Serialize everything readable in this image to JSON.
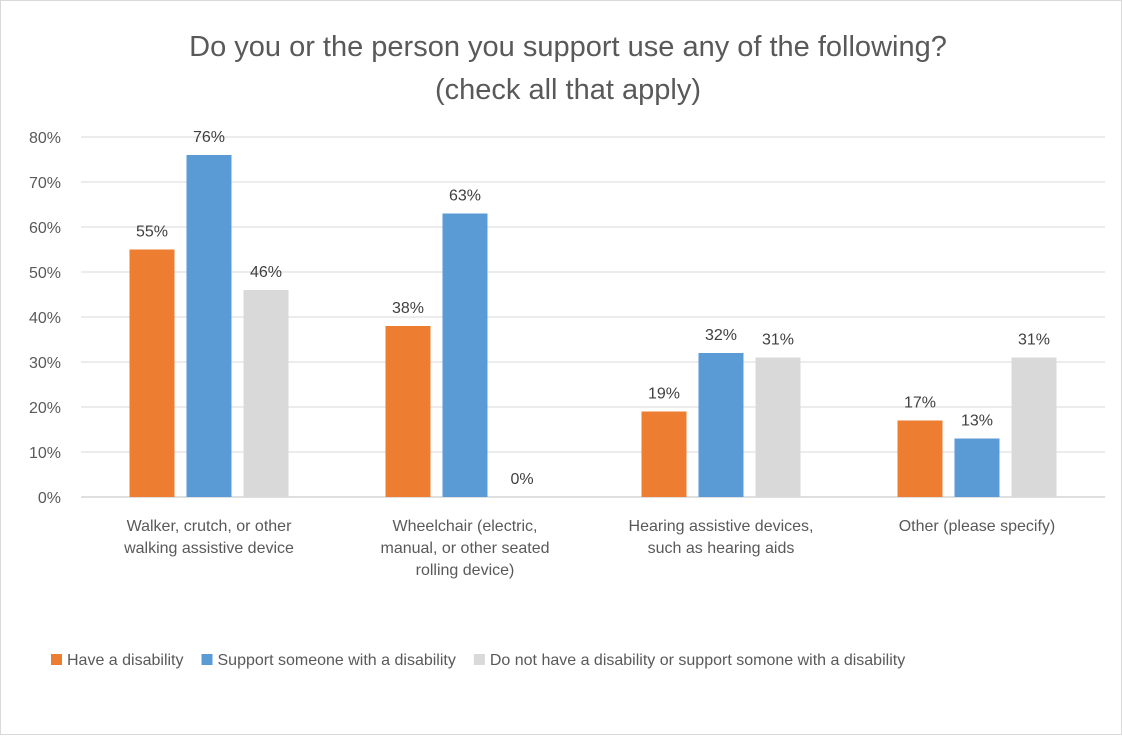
{
  "chart_data": {
    "type": "bar",
    "title": "Do you or the person you support use any of the following? (check all that apply)",
    "title_lines": [
      "Do you or the person you support use any of the following?",
      "(check all that apply)"
    ],
    "categories": [
      [
        "Walker, crutch, or other",
        "walking assistive device"
      ],
      [
        "Wheelchair (electric,",
        "manual, or other seated",
        "rolling device)"
      ],
      [
        "Hearing assistive devices,",
        "such as hearing aids"
      ],
      [
        "Other (please specify)"
      ]
    ],
    "series": [
      {
        "name": "Have a disability",
        "color": "#ED7D31",
        "values": [
          55,
          38,
          19,
          17
        ],
        "labels": [
          "55%",
          "38%",
          "19%",
          "17%"
        ]
      },
      {
        "name": "Support someone with a disability",
        "color": "#5B9BD5",
        "values": [
          76,
          63,
          32,
          13
        ],
        "labels": [
          "76%",
          "63%",
          "32%",
          "13%"
        ]
      },
      {
        "name": "Do not have a disability or support somone with a disability",
        "color": "#D9D9D9",
        "values": [
          46,
          0,
          31,
          31
        ],
        "labels": [
          "46%",
          "0%",
          "31%",
          "31%"
        ]
      }
    ],
    "y_ticks": [
      "0%",
      "10%",
      "20%",
      "30%",
      "40%",
      "50%",
      "60%",
      "70%",
      "80%"
    ],
    "ylim": [
      0,
      80
    ],
    "xlabel": "",
    "ylabel": "",
    "grid": true,
    "legend_position": "bottom"
  }
}
